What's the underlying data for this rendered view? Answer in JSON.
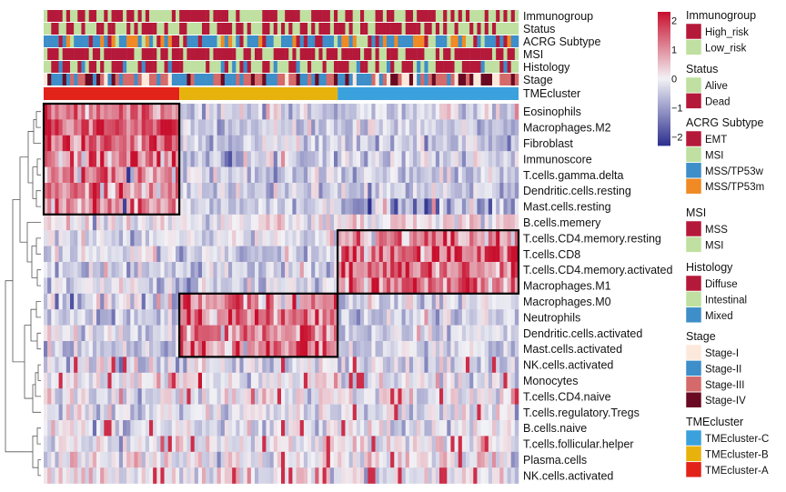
{
  "chart_data": {
    "type": "heatmap",
    "title": "",
    "column_groups": [
      {
        "name": "TMEcluster-A",
        "n": 36
      },
      {
        "name": "TMEcluster-B",
        "n": 42
      },
      {
        "name": "TMEcluster-C",
        "n": 48
      }
    ],
    "annotation_tracks": [
      "Immunogroup",
      "Status",
      "ACRG Subtype",
      "MSI",
      "Histology",
      "Stage",
      "TMEcluster"
    ],
    "rows": [
      {
        "label": "Eosinophils",
        "profile": [
          0.9,
          -0.3,
          -0.2
        ]
      },
      {
        "label": "Macrophages.M2",
        "profile": [
          1.0,
          -0.3,
          -0.3
        ]
      },
      {
        "label": "Fibroblast",
        "profile": [
          0.9,
          -0.2,
          -0.3
        ]
      },
      {
        "label": "Immunoscore",
        "profile": [
          0.7,
          -0.2,
          -0.2
        ]
      },
      {
        "label": "T.cells.gamma.delta",
        "profile": [
          0.6,
          -0.2,
          -0.3
        ]
      },
      {
        "label": "Dendritic.cells.resting",
        "profile": [
          0.7,
          -0.3,
          -0.3
        ]
      },
      {
        "label": "Mast.cells.resting",
        "profile": [
          0.6,
          -0.3,
          -0.4
        ]
      },
      {
        "label": "B.cells.memery",
        "profile": [
          0.0,
          0.0,
          0.1
        ]
      },
      {
        "label": "T.cells.CD4.memory.resting",
        "profile": [
          -0.2,
          -0.1,
          0.7
        ]
      },
      {
        "label": "T.cells.CD8",
        "profile": [
          -0.1,
          -0.3,
          0.9
        ]
      },
      {
        "label": "T.cells.CD4.memory.activated",
        "profile": [
          -0.2,
          -0.2,
          0.8
        ]
      },
      {
        "label": "Macrophages.M1",
        "profile": [
          -0.2,
          -0.3,
          0.8
        ]
      },
      {
        "label": "Macrophages.M0",
        "profile": [
          -0.4,
          0.8,
          -0.2
        ]
      },
      {
        "label": "Neutrophils",
        "profile": [
          -0.3,
          0.8,
          -0.2
        ]
      },
      {
        "label": "Dendritic.cells.activated",
        "profile": [
          -0.2,
          0.6,
          -0.2
        ]
      },
      {
        "label": "Mast.cells.activated",
        "profile": [
          -0.3,
          0.7,
          -0.3
        ]
      },
      {
        "label": "NK.cells.activated",
        "profile": [
          -0.2,
          -0.2,
          -0.2
        ]
      },
      {
        "label": "Monocytes",
        "profile": [
          -0.05,
          -0.05,
          -0.05
        ]
      },
      {
        "label": "T.cells.CD4.naive",
        "profile": [
          -0.05,
          -0.05,
          -0.05
        ]
      },
      {
        "label": "T.cells.regulatory.Tregs",
        "profile": [
          -0.1,
          -0.1,
          -0.1
        ]
      },
      {
        "label": "B.cells.naive",
        "profile": [
          -0.1,
          -0.1,
          -0.1
        ]
      },
      {
        "label": "T.cells.follicular.helper",
        "profile": [
          0.0,
          0.0,
          0.0
        ]
      },
      {
        "label": "Plasma.cells",
        "profile": [
          0.0,
          0.0,
          0.0
        ]
      },
      {
        "label": "NK.cells.activated",
        "profile": [
          0.0,
          0.0,
          0.0
        ]
      }
    ],
    "highlight_boxes": [
      {
        "cluster": "TMEcluster-A",
        "rows": "Eosinophils to Mast.cells.resting"
      },
      {
        "cluster": "TMEcluster-C",
        "rows": "T.cells.CD4.memory.resting to Macrophages.M1"
      },
      {
        "cluster": "TMEcluster-B",
        "rows": "Macrophages.M0 to Mast.cells.activated"
      }
    ],
    "color_scale": {
      "ticks": [
        2,
        1,
        0,
        -1,
        -2
      ],
      "tick_labels": [
        "2",
        "1",
        "0",
        "−1",
        "−2"
      ],
      "range": [
        -2.3,
        2.3
      ],
      "low": "#2c2f8f",
      "mid": "#f2f2f6",
      "high": "#c8102e"
    },
    "legends": [
      {
        "title": "Immunogroup",
        "items": [
          {
            "label": "High_risk",
            "color": "#b5193a"
          },
          {
            "label": "Low_risk",
            "color": "#bfe0a0"
          }
        ]
      },
      {
        "title": "Status",
        "items": [
          {
            "label": "Alive",
            "color": "#bfe0a0"
          },
          {
            "label": "Dead",
            "color": "#b5193a"
          }
        ]
      },
      {
        "title": "ACRG Subtype",
        "items": [
          {
            "label": "EMT",
            "color": "#b5193a"
          },
          {
            "label": "MSI",
            "color": "#bfe0a0"
          },
          {
            "label": "MSS/TP53w",
            "color": "#3d8ec9"
          },
          {
            "label": "MSS/TP53m",
            "color": "#f08a24"
          }
        ]
      },
      {
        "title": "MSI",
        "items": [
          {
            "label": "MSS",
            "color": "#b5193a"
          },
          {
            "label": "MSI",
            "color": "#bfe0a0"
          }
        ]
      },
      {
        "title": "Histology",
        "items": [
          {
            "label": "Diffuse",
            "color": "#b5193a"
          },
          {
            "label": "Intestinal",
            "color": "#bfe0a0"
          },
          {
            "label": "Mixed",
            "color": "#3d8ec9"
          }
        ]
      },
      {
        "title": "Stage",
        "items": [
          {
            "label": "Stage-I",
            "color": "#fde9dc"
          },
          {
            "label": "Stage-II",
            "color": "#3d8ec9"
          },
          {
            "label": "Stage-III",
            "color": "#d46a6a"
          },
          {
            "label": "Stage-IV",
            "color": "#6a0a22"
          }
        ]
      },
      {
        "title": "TMEcluster",
        "items": [
          {
            "label": "TMEcluster-C",
            "color": "#3aa1dc"
          },
          {
            "label": "TMEcluster-B",
            "color": "#e8b20d"
          },
          {
            "label": "TMEcluster-A",
            "color": "#e2231a"
          }
        ]
      }
    ]
  }
}
